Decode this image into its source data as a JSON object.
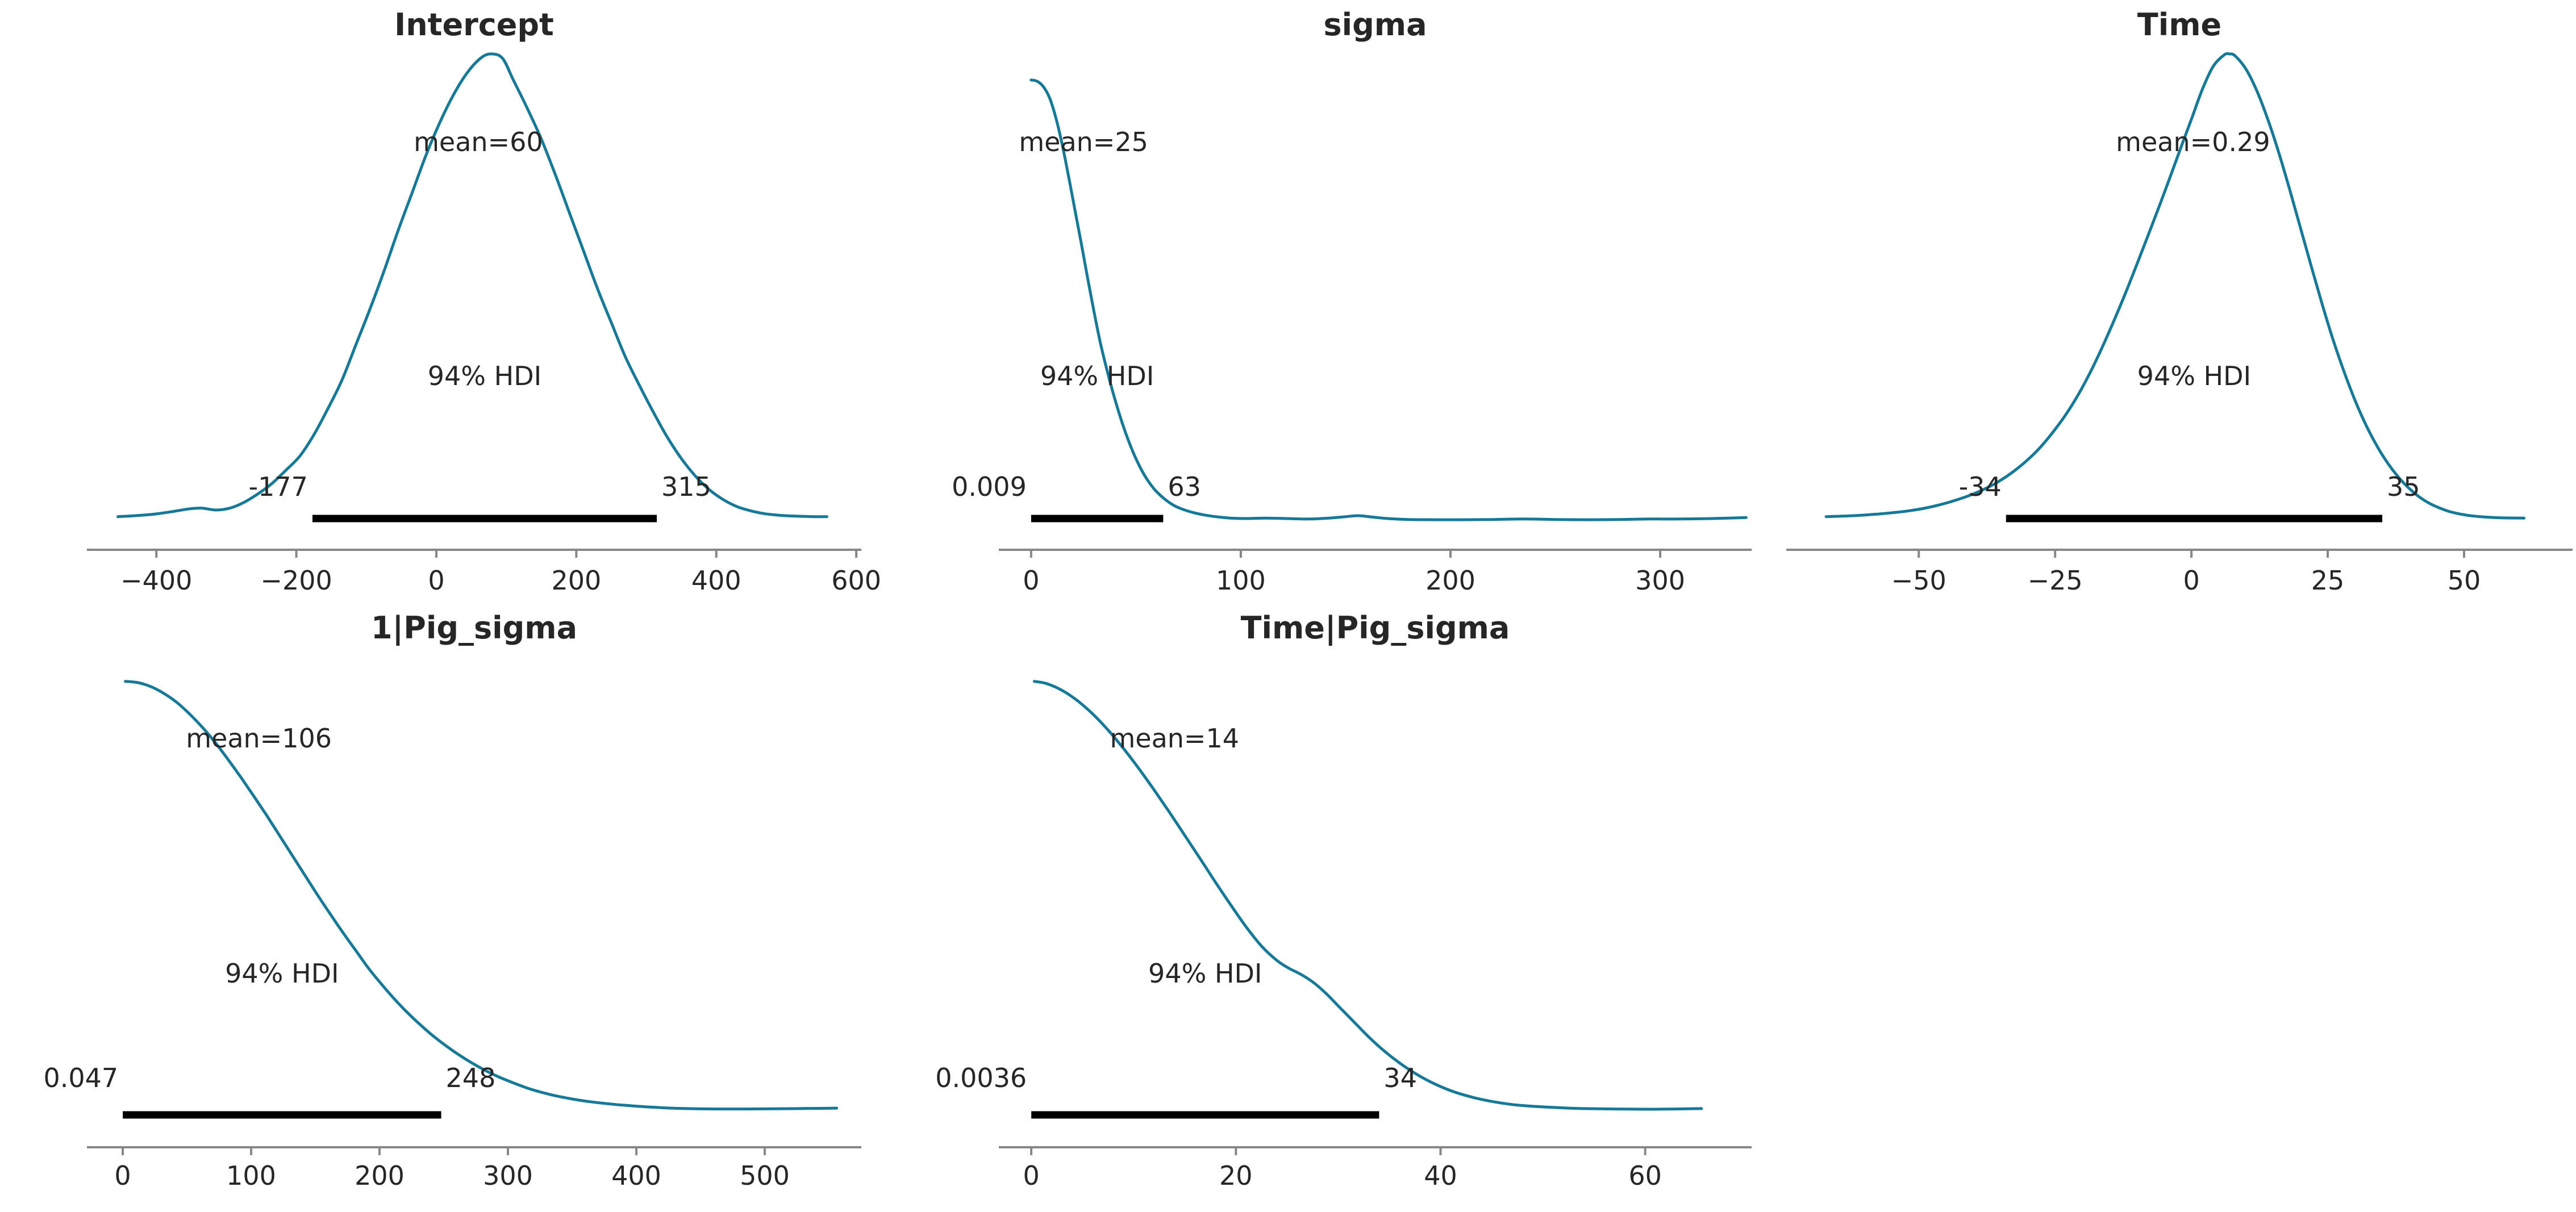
{
  "figure": {
    "background": "#ffffff",
    "curve_color": "#167997",
    "text_color": "#262626",
    "axis_color": "#878787",
    "hdi_bar_color": "#000000"
  },
  "chart_data": [
    {
      "type": "kde",
      "title": "Intercept",
      "mean": 60,
      "hdi_prob": "94%",
      "hdi": [
        -177,
        315
      ],
      "labels": {
        "mean": "mean=60",
        "hdi": "94% HDI",
        "hdi_lower": "-177",
        "hdi_upper": "315"
      },
      "xlim": [
        -499.2,
        607.2
      ],
      "xticks": {
        "values": [
          -400,
          -200,
          0,
          200,
          400,
          600
        ],
        "labels": [
          "−400",
          "−200",
          "0",
          "200",
          "400",
          "600"
        ]
      },
      "curve": [
        [
          -455,
          0.022
        ],
        [
          -430,
          0.024
        ],
        [
          -405,
          0.027
        ],
        [
          -380,
          0.032
        ],
        [
          -355,
          0.038
        ],
        [
          -335,
          0.04
        ],
        [
          -315,
          0.036
        ],
        [
          -295,
          0.04
        ],
        [
          -275,
          0.052
        ],
        [
          -255,
          0.07
        ],
        [
          -235,
          0.092
        ],
        [
          -215,
          0.12
        ],
        [
          -195,
          0.15
        ],
        [
          -175,
          0.195
        ],
        [
          -155,
          0.25
        ],
        [
          -135,
          0.31
        ],
        [
          -115,
          0.385
        ],
        [
          -95,
          0.46
        ],
        [
          -75,
          0.54
        ],
        [
          -55,
          0.625
        ],
        [
          -35,
          0.705
        ],
        [
          -15,
          0.785
        ],
        [
          5,
          0.855
        ],
        [
          25,
          0.915
        ],
        [
          45,
          0.962
        ],
        [
          65,
          0.993
        ],
        [
          80,
          1.0
        ],
        [
          95,
          0.99
        ],
        [
          110,
          0.945
        ],
        [
          130,
          0.885
        ],
        [
          150,
          0.82
        ],
        [
          170,
          0.745
        ],
        [
          190,
          0.665
        ],
        [
          210,
          0.585
        ],
        [
          230,
          0.505
        ],
        [
          250,
          0.432
        ],
        [
          270,
          0.36
        ],
        [
          290,
          0.3
        ],
        [
          310,
          0.243
        ],
        [
          330,
          0.19
        ],
        [
          350,
          0.145
        ],
        [
          370,
          0.108
        ],
        [
          390,
          0.079
        ],
        [
          410,
          0.058
        ],
        [
          430,
          0.043
        ],
        [
          450,
          0.034
        ],
        [
          470,
          0.028
        ],
        [
          490,
          0.025
        ],
        [
          515,
          0.023
        ],
        [
          540,
          0.022
        ],
        [
          558,
          0.022
        ]
      ]
    },
    {
      "type": "kde",
      "title": "sigma",
      "mean": 25,
      "hdi_prob": "94%",
      "hdi": [
        0.009,
        63
      ],
      "labels": {
        "mean": "mean=25",
        "hdi": "94% HDI",
        "hdi_lower": "0.009",
        "hdi_upper": "63"
      },
      "xlim": [
        -15.4,
        343.6
      ],
      "xticks": {
        "values": [
          0,
          100,
          200,
          300
        ],
        "labels": [
          "0",
          "100",
          "200",
          "300"
        ]
      },
      "curve": [
        [
          0,
          0.945
        ],
        [
          3,
          0.942
        ],
        [
          6,
          0.93
        ],
        [
          9,
          0.905
        ],
        [
          12,
          0.862
        ],
        [
          15,
          0.805
        ],
        [
          18,
          0.738
        ],
        [
          21,
          0.668
        ],
        [
          24,
          0.598
        ],
        [
          27,
          0.525
        ],
        [
          30,
          0.455
        ],
        [
          33,
          0.39
        ],
        [
          36,
          0.335
        ],
        [
          39,
          0.285
        ],
        [
          42,
          0.24
        ],
        [
          45,
          0.2
        ],
        [
          48,
          0.165
        ],
        [
          51,
          0.135
        ],
        [
          54,
          0.11
        ],
        [
          57,
          0.09
        ],
        [
          60,
          0.074
        ],
        [
          64,
          0.058
        ],
        [
          68,
          0.046
        ],
        [
          72,
          0.038
        ],
        [
          77,
          0.031
        ],
        [
          82,
          0.026
        ],
        [
          88,
          0.022
        ],
        [
          95,
          0.019
        ],
        [
          103,
          0.018
        ],
        [
          112,
          0.019
        ],
        [
          122,
          0.018
        ],
        [
          132,
          0.017
        ],
        [
          142,
          0.019
        ],
        [
          150,
          0.022
        ],
        [
          156,
          0.024
        ],
        [
          163,
          0.021
        ],
        [
          170,
          0.018
        ],
        [
          180,
          0.016
        ],
        [
          192,
          0.0155
        ],
        [
          205,
          0.0155
        ],
        [
          220,
          0.016
        ],
        [
          235,
          0.017
        ],
        [
          250,
          0.016
        ],
        [
          265,
          0.0155
        ],
        [
          280,
          0.016
        ],
        [
          295,
          0.017
        ],
        [
          310,
          0.017
        ],
        [
          325,
          0.018
        ],
        [
          341,
          0.02
        ]
      ]
    },
    {
      "type": "kde",
      "title": "Time",
      "mean": 0.29,
      "hdi_prob": "94%",
      "hdi": [
        -34,
        35
      ],
      "labels": {
        "mean": "mean=0.29",
        "hdi": "94% HDI",
        "hdi_lower": "-34",
        "hdi_upper": "35"
      },
      "xlim": [
        -74.3,
        69.9
      ],
      "xticks": {
        "values": [
          -50,
          -25,
          0,
          25,
          50
        ],
        "labels": [
          "−50",
          "−25",
          "0",
          "25",
          "50"
        ]
      },
      "curve": [
        [
          -67,
          0.022
        ],
        [
          -62,
          0.024
        ],
        [
          -57,
          0.028
        ],
        [
          -52,
          0.034
        ],
        [
          -48,
          0.042
        ],
        [
          -44,
          0.054
        ],
        [
          -40,
          0.07
        ],
        [
          -36,
          0.092
        ],
        [
          -32,
          0.123
        ],
        [
          -28,
          0.165
        ],
        [
          -24,
          0.222
        ],
        [
          -21,
          0.275
        ],
        [
          -18,
          0.34
        ],
        [
          -15,
          0.415
        ],
        [
          -12,
          0.497
        ],
        [
          -9,
          0.585
        ],
        [
          -6,
          0.675
        ],
        [
          -4,
          0.737
        ],
        [
          -2,
          0.8
        ],
        [
          0,
          0.862
        ],
        [
          2,
          0.925
        ],
        [
          4,
          0.974
        ],
        [
          6,
          0.998
        ],
        [
          7,
          1.0
        ],
        [
          8,
          0.996
        ],
        [
          10,
          0.968
        ],
        [
          12,
          0.922
        ],
        [
          14,
          0.862
        ],
        [
          16,
          0.792
        ],
        [
          18,
          0.714
        ],
        [
          20,
          0.632
        ],
        [
          22,
          0.55
        ],
        [
          24,
          0.47
        ],
        [
          26,
          0.395
        ],
        [
          28,
          0.328
        ],
        [
          30,
          0.268
        ],
        [
          32,
          0.216
        ],
        [
          34,
          0.172
        ],
        [
          36,
          0.135
        ],
        [
          38,
          0.105
        ],
        [
          40,
          0.081
        ],
        [
          42,
          0.062
        ],
        [
          44,
          0.048
        ],
        [
          47,
          0.034
        ],
        [
          50,
          0.026
        ],
        [
          53,
          0.022
        ],
        [
          57,
          0.0195
        ],
        [
          61,
          0.019
        ]
      ]
    },
    {
      "type": "kde",
      "title": "1|Pig_sigma",
      "mean": 106,
      "hdi_prob": "94%",
      "hdi": [
        0.047,
        248
      ],
      "labels": {
        "mean": "mean=106",
        "hdi": "94% HDI",
        "hdi_lower": "0.047",
        "hdi_upper": "248"
      },
      "xlim": [
        -27.9,
        575.2
      ],
      "xticks": {
        "values": [
          0,
          100,
          200,
          300,
          400,
          500
        ],
        "labels": [
          "0",
          "100",
          "200",
          "300",
          "400",
          "500"
        ]
      },
      "curve": [
        [
          2,
          0.975
        ],
        [
          12,
          0.972
        ],
        [
          22,
          0.963
        ],
        [
          32,
          0.948
        ],
        [
          42,
          0.928
        ],
        [
          52,
          0.902
        ],
        [
          62,
          0.872
        ],
        [
          72,
          0.838
        ],
        [
          82,
          0.8
        ],
        [
          92,
          0.76
        ],
        [
          102,
          0.718
        ],
        [
          112,
          0.675
        ],
        [
          122,
          0.63
        ],
        [
          132,
          0.585
        ],
        [
          142,
          0.54
        ],
        [
          152,
          0.495
        ],
        [
          162,
          0.452
        ],
        [
          172,
          0.41
        ],
        [
          182,
          0.37
        ],
        [
          192,
          0.33
        ],
        [
          202,
          0.295
        ],
        [
          212,
          0.262
        ],
        [
          222,
          0.232
        ],
        [
          232,
          0.205
        ],
        [
          242,
          0.18
        ],
        [
          252,
          0.158
        ],
        [
          262,
          0.138
        ],
        [
          272,
          0.12
        ],
        [
          282,
          0.104
        ],
        [
          292,
          0.09
        ],
        [
          302,
          0.078
        ],
        [
          317,
          0.062
        ],
        [
          332,
          0.05
        ],
        [
          347,
          0.041
        ],
        [
          362,
          0.034
        ],
        [
          377,
          0.029
        ],
        [
          392,
          0.025
        ],
        [
          407,
          0.022
        ],
        [
          427,
          0.019
        ],
        [
          447,
          0.0175
        ],
        [
          467,
          0.017
        ],
        [
          487,
          0.017
        ],
        [
          507,
          0.0175
        ],
        [
          527,
          0.018
        ],
        [
          545,
          0.0185
        ],
        [
          556,
          0.019
        ]
      ]
    },
    {
      "type": "kde",
      "title": "Time|Pig_sigma",
      "mean": 14,
      "hdi_prob": "94%",
      "hdi": [
        0.0036,
        34
      ],
      "labels": {
        "mean": "mean=14",
        "hdi": "94% HDI",
        "hdi_lower": "0.0036",
        "hdi_upper": "34"
      },
      "xlim": [
        -3.17,
        70.4
      ],
      "xticks": {
        "values": [
          0,
          20,
          40,
          60
        ],
        "labels": [
          "0",
          "20",
          "40",
          "60"
        ]
      },
      "curve": [
        [
          0.3,
          0.975
        ],
        [
          1.5,
          0.97
        ],
        [
          3,
          0.955
        ],
        [
          4.5,
          0.932
        ],
        [
          6,
          0.902
        ],
        [
          7.5,
          0.866
        ],
        [
          9,
          0.825
        ],
        [
          10.5,
          0.78
        ],
        [
          12,
          0.732
        ],
        [
          13.5,
          0.682
        ],
        [
          15,
          0.63
        ],
        [
          16.5,
          0.578
        ],
        [
          18,
          0.525
        ],
        [
          19.5,
          0.474
        ],
        [
          21,
          0.425
        ],
        [
          22.5,
          0.382
        ],
        [
          24,
          0.35
        ],
        [
          25.2,
          0.332
        ],
        [
          26.4,
          0.318
        ],
        [
          27.6,
          0.3
        ],
        [
          28.8,
          0.276
        ],
        [
          30,
          0.248
        ],
        [
          31.5,
          0.213
        ],
        [
          33,
          0.178
        ],
        [
          34.5,
          0.147
        ],
        [
          36,
          0.12
        ],
        [
          37.5,
          0.097
        ],
        [
          39,
          0.078
        ],
        [
          41,
          0.058
        ],
        [
          43,
          0.044
        ],
        [
          45,
          0.034
        ],
        [
          47,
          0.027
        ],
        [
          49,
          0.023
        ],
        [
          51.5,
          0.02
        ],
        [
          54,
          0.018
        ],
        [
          57,
          0.017
        ],
        [
          60,
          0.0165
        ],
        [
          63,
          0.017
        ],
        [
          65.5,
          0.018
        ]
      ]
    }
  ]
}
